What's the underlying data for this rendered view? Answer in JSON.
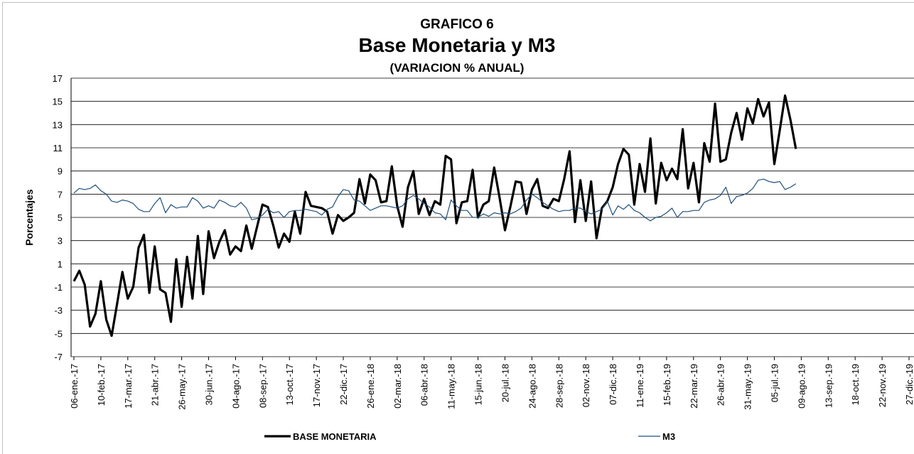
{
  "chart_data": {
    "type": "line",
    "title": "GRAFICO 6",
    "subtitle": "Base Monetaria y M3",
    "subtitle2": "(VARIACION % ANUAL)",
    "y_label": "Porcentajes",
    "ylim": [
      -7,
      17
    ],
    "yticks": [
      -7,
      -5,
      -3,
      -1,
      1,
      3,
      5,
      7,
      9,
      11,
      13,
      15,
      17
    ],
    "grid": true,
    "categories": [
      "06-ene.-17",
      null,
      null,
      null,
      null,
      "10-feb.-17",
      null,
      null,
      null,
      null,
      "17-mar.-17",
      null,
      null,
      null,
      null,
      "21-abr.-17",
      null,
      null,
      null,
      null,
      "26-may.-17",
      null,
      null,
      null,
      null,
      "30-jun.-17",
      null,
      null,
      null,
      null,
      "04-ago.-17",
      null,
      null,
      null,
      null,
      "08-sep.-17",
      null,
      null,
      null,
      null,
      "13-oct.-17",
      null,
      null,
      null,
      null,
      "17-nov.-17",
      null,
      null,
      null,
      null,
      "22-dic.-17",
      null,
      null,
      null,
      null,
      "26-ene.-18",
      null,
      null,
      null,
      null,
      "02-mar.-18",
      null,
      null,
      null,
      null,
      "06-abr.-18",
      null,
      null,
      null,
      null,
      "11-may.-18",
      null,
      null,
      null,
      null,
      "15-jun.-18",
      null,
      null,
      null,
      null,
      "20-jul.-18",
      null,
      null,
      null,
      null,
      "24-ago.-18",
      null,
      null,
      null,
      null,
      "28-sep.-18",
      null,
      null,
      null,
      null,
      "02-nov.-18",
      null,
      null,
      null,
      null,
      "07-dic.-18",
      null,
      null,
      null,
      null,
      "11-ene.-19",
      null,
      null,
      null,
      null,
      "15-feb.-19",
      null,
      null,
      null,
      null,
      "22-mar.-19",
      null,
      null,
      null,
      null,
      "26-abr.-19",
      null,
      null,
      null,
      null,
      "31-may.-19",
      null,
      null,
      null,
      null,
      "05-jul.-19",
      null,
      null,
      null,
      null,
      "09-ago.-19",
      null,
      null,
      null,
      null,
      "13-sep.-19",
      null,
      null,
      null,
      null,
      "18-oct.-19",
      null,
      null,
      null,
      null,
      "22-nov.-19",
      null,
      null,
      null,
      null,
      "27-dic.-19"
    ],
    "series": [
      {
        "name": "BASE MONETARIA",
        "color": "#000000",
        "width": 3.2,
        "values": [
          -0.5,
          0.4,
          -0.8,
          -4.4,
          -3.3,
          -0.5,
          -3.8,
          -5.2,
          -2.5,
          0.3,
          -2.0,
          -1.0,
          2.4,
          3.5,
          -1.5,
          2.5,
          -1.2,
          -1.5,
          -4.0,
          1.4,
          -2.7,
          1.6,
          -2.0,
          3.4,
          -1.6,
          3.8,
          1.5,
          2.9,
          3.9,
          1.8,
          2.5,
          2.1,
          4.3,
          2.3,
          4.2,
          6.1,
          5.9,
          4.3,
          2.4,
          3.6,
          2.9,
          5.5,
          3.6,
          7.2,
          6.0,
          5.9,
          5.8,
          5.5,
          3.6,
          5.2,
          4.7,
          5.0,
          5.4,
          8.3,
          6.2,
          8.7,
          8.2,
          6.3,
          6.4,
          9.4,
          6.0,
          4.2,
          7.6,
          9.0,
          5.3,
          6.6,
          5.2,
          6.4,
          6.1,
          10.3,
          10.0,
          4.5,
          6.3,
          6.4,
          9.1,
          5.0,
          6.1,
          6.4,
          9.3,
          6.7,
          3.9,
          5.9,
          8.1,
          8.0,
          5.3,
          7.4,
          8.3,
          6.0,
          5.8,
          6.6,
          6.4,
          8.3,
          10.7,
          4.6,
          8.2,
          4.7,
          8.1,
          3.2,
          5.8,
          6.4,
          7.6,
          9.6,
          10.9,
          10.4,
          6.1,
          9.6,
          7.2,
          11.8,
          6.2,
          9.7,
          8.2,
          9.2,
          8.3,
          12.6,
          7.5,
          9.7,
          6.3,
          11.4,
          9.8,
          14.8,
          9.8,
          10.0,
          12.3,
          14.0,
          11.7,
          14.4,
          13.1,
          15.2,
          13.7,
          14.9,
          9.6,
          12.5,
          15.5,
          13.4,
          10.9,
          null,
          null,
          null,
          null,
          null,
          null,
          null,
          null,
          null,
          null,
          null,
          null,
          null,
          null,
          null,
          null,
          null,
          null,
          null,
          null,
          null
        ]
      },
      {
        "name": "M3",
        "color": "#1f4e79",
        "width": 1.2,
        "values": [
          7.1,
          7.5,
          7.4,
          7.5,
          7.8,
          7.3,
          7.0,
          6.4,
          6.3,
          6.5,
          6.4,
          6.2,
          5.7,
          5.5,
          5.5,
          6.2,
          6.7,
          5.4,
          6.1,
          5.8,
          5.9,
          5.9,
          6.7,
          6.4,
          5.8,
          6.0,
          5.8,
          6.5,
          6.3,
          6.0,
          5.9,
          6.3,
          5.8,
          4.8,
          4.9,
          5.2,
          5.7,
          5.4,
          5.5,
          5.0,
          5.5,
          5.6,
          5.6,
          5.7,
          5.6,
          5.5,
          5.2,
          5.7,
          5.9,
          6.8,
          7.4,
          7.3,
          6.5,
          6.4,
          6.0,
          5.6,
          5.8,
          6.0,
          6.0,
          5.9,
          5.8,
          6.0,
          6.6,
          6.9,
          6.6,
          6.2,
          5.9,
          5.4,
          5.3,
          4.8,
          6.5,
          6.0,
          5.6,
          5.6,
          5.0,
          5.0,
          5.3,
          5.1,
          5.4,
          5.3,
          5.4,
          5.3,
          5.5,
          5.8,
          6.5,
          7.0,
          6.7,
          6.3,
          6.0,
          5.7,
          5.5,
          5.6,
          5.6,
          5.8,
          5.8,
          5.5,
          5.3,
          5.5,
          5.7,
          6.4,
          5.2,
          6.0,
          5.7,
          6.1,
          5.6,
          5.4,
          5.0,
          4.7,
          5.0,
          5.1,
          5.4,
          5.8,
          5.0,
          5.5,
          5.5,
          5.6,
          5.6,
          6.3,
          6.5,
          6.6,
          6.9,
          7.6,
          6.2,
          6.8,
          6.9,
          7.1,
          7.5,
          8.2,
          8.3,
          8.1,
          8.0,
          8.1,
          7.4,
          7.6,
          7.9,
          null,
          null,
          null,
          null,
          null,
          null,
          null,
          null,
          null,
          null,
          null,
          null,
          null,
          null,
          null,
          null,
          null,
          null,
          null,
          null,
          null
        ]
      }
    ]
  }
}
